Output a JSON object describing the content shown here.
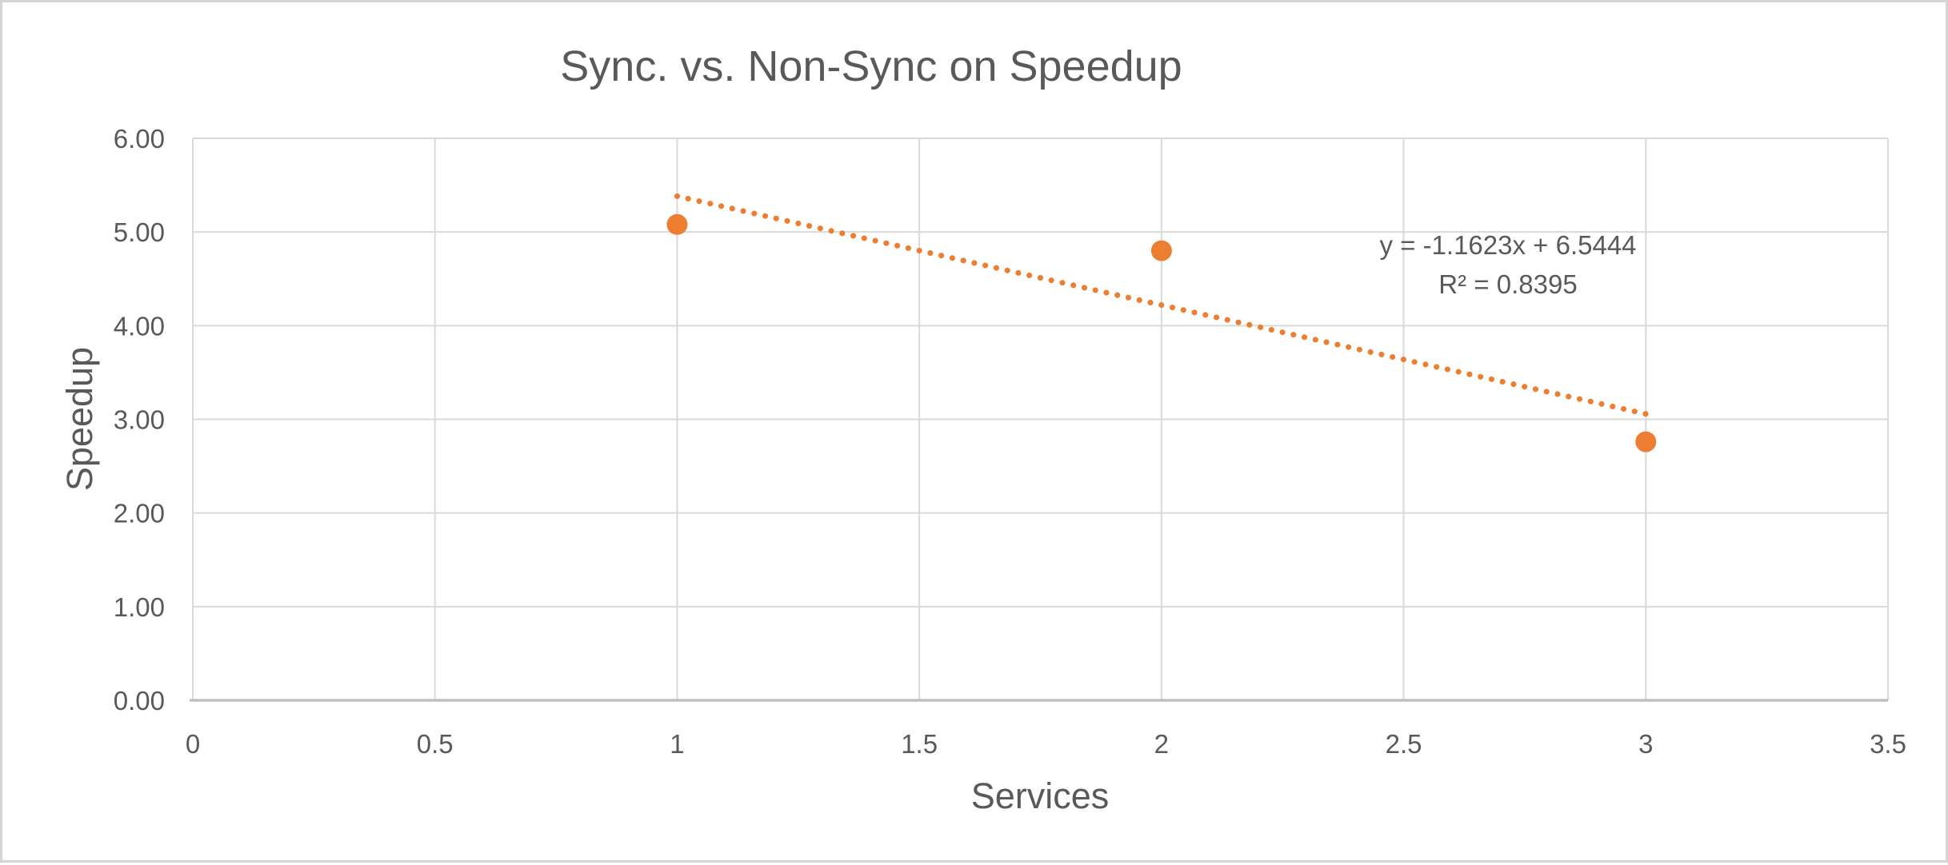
{
  "chart_data": {
    "type": "scatter",
    "title": "Sync. vs. Non-Sync on Speedup",
    "xlabel": "Services",
    "ylabel": "Speedup",
    "xlim": [
      0,
      3.5
    ],
    "ylim": [
      0,
      6
    ],
    "grid": true,
    "legend": false,
    "x_ticks": [
      {
        "value": 0,
        "label": "0"
      },
      {
        "value": 0.5,
        "label": "0.5"
      },
      {
        "value": 1,
        "label": "1"
      },
      {
        "value": 1.5,
        "label": "1.5"
      },
      {
        "value": 2,
        "label": "2"
      },
      {
        "value": 2.5,
        "label": "2.5"
      },
      {
        "value": 3,
        "label": "3"
      },
      {
        "value": 3.5,
        "label": "3.5"
      }
    ],
    "y_ticks": [
      {
        "value": 0,
        "label": "0.00"
      },
      {
        "value": 1,
        "label": "1.00"
      },
      {
        "value": 2,
        "label": "2.00"
      },
      {
        "value": 3,
        "label": "3.00"
      },
      {
        "value": 4,
        "label": "4.00"
      },
      {
        "value": 5,
        "label": "5.00"
      },
      {
        "value": 6,
        "label": "6.00"
      }
    ],
    "series": [
      {
        "name": "Speedup",
        "marker": "circle",
        "color": "#ED7D31",
        "points": [
          {
            "x": 1,
            "y": 5.08
          },
          {
            "x": 2,
            "y": 4.8
          },
          {
            "x": 3,
            "y": 2.76
          }
        ]
      }
    ],
    "trendline": {
      "style": "dotted",
      "color": "#ED7D31",
      "slope": -1.1623,
      "intercept": 6.5444,
      "x_start": 1,
      "x_end": 3,
      "equation_label": "y = -1.1623x + 6.5444",
      "r_squared_label": "R² = 0.8395"
    },
    "colors": {
      "marker": "#ED7D31",
      "trendline": "#ED7D31",
      "gridline": "#D9D9D9",
      "axis_line": "#BFBFBF",
      "text": "#595959",
      "frame_border": "#D5D5D5"
    }
  }
}
